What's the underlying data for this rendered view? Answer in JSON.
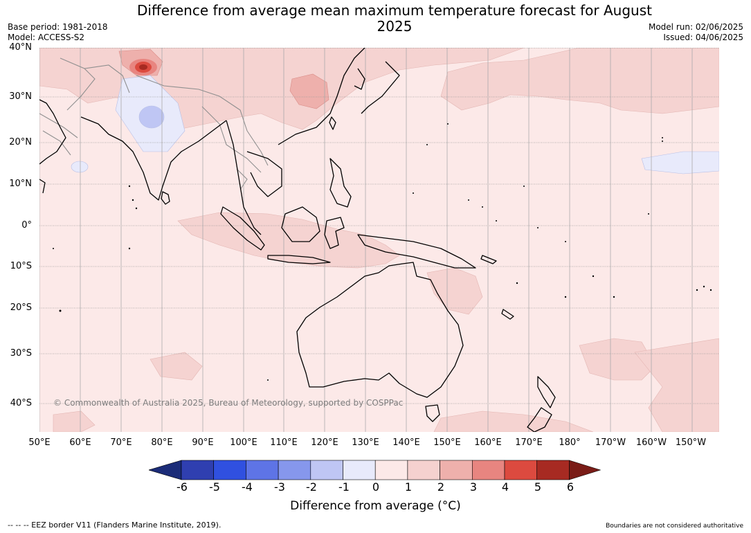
{
  "title": "Difference from average mean maximum temperature forecast for August 2025",
  "meta_left": {
    "base_period": "Base period: 1981-2018",
    "model": "Model: ACCESS-S2"
  },
  "meta_right": {
    "model_run": "Model run: 02/06/2025",
    "issued": "Issued: 04/06/2025"
  },
  "map": {
    "lat_labels": [
      "40°N",
      "30°N",
      "20°N",
      "10°N",
      "0°",
      "10°S",
      "20°S",
      "30°S",
      "40°S"
    ],
    "lon_labels": [
      "50°E",
      "60°E",
      "70°E",
      "80°E",
      "90°E",
      "100°E",
      "110°E",
      "120°E",
      "130°E",
      "140°E",
      "150°E",
      "160°E",
      "170°E",
      "180°",
      "170°W",
      "160°W",
      "150°W"
    ],
    "copyright": "© Commonwealth of Australia 2025, Bureau of Meteorology, supported by COSPPac",
    "colors": {
      "ocean_base": "#fce9e8",
      "land_outline": "#000000",
      "border": "#9a9a9a",
      "grid": "#999999"
    }
  },
  "colorbar": {
    "title": "Difference from average (°C)",
    "ticks": [
      "-6",
      "-5",
      "-4",
      "-3",
      "-2",
      "-1",
      "0",
      "1",
      "2",
      "3",
      "4",
      "5",
      "6"
    ],
    "colors": [
      "#1b2c78",
      "#2f3fb0",
      "#3050e0",
      "#5e74e6",
      "#8697ec",
      "#bfc6f4",
      "#e8eafb",
      "#fce9e8",
      "#f5d1cf",
      "#eeb0ac",
      "#e88580",
      "#dc4a3f",
      "#a72a22",
      "#7a1c17"
    ]
  },
  "footer": {
    "eez_note": "--  --  -- EEZ border V11 (Flanders Marine Institute, 2019).",
    "boundaries": "Boundaries are not considered authoritative"
  }
}
